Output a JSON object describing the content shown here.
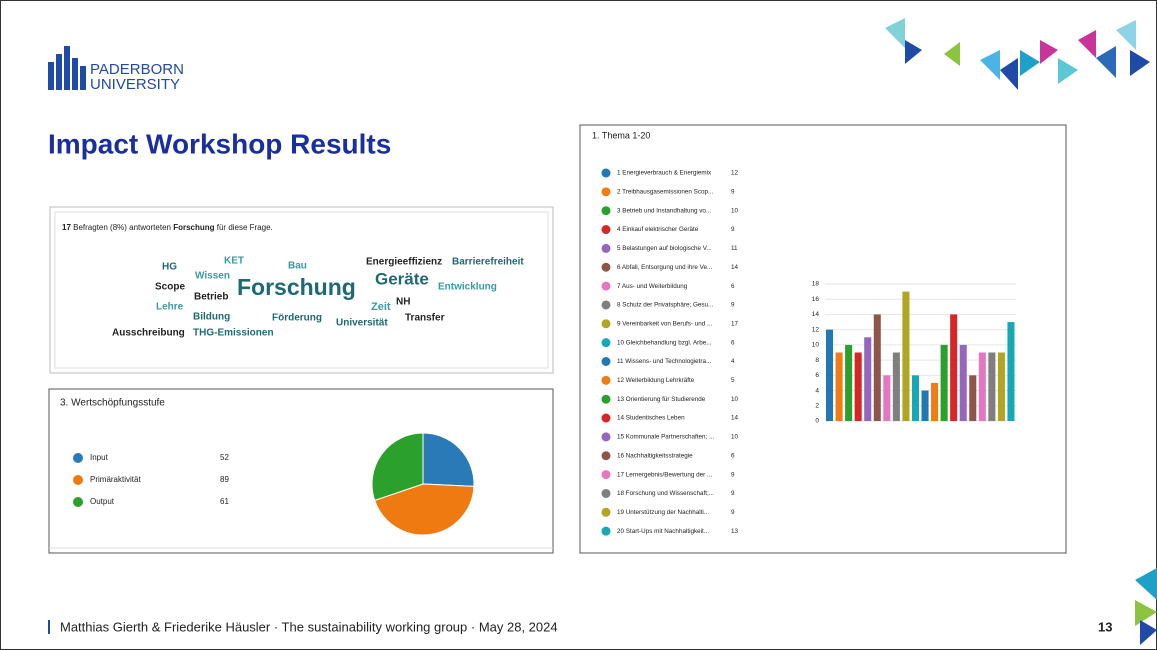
{
  "slide": {
    "logo": [
      "PADERBORN",
      "UNIVERSITY"
    ],
    "title": "Impact Workshop Results",
    "footer": "Matthias Gierth & Friederike Häusler · The sustainability working group · May 28, 2024",
    "page": "13"
  },
  "word_cloud": {
    "summary": [
      "17",
      " Befragten (8%) antworteten ",
      "Forschung",
      " für diese Frage."
    ],
    "words": [
      "KET",
      "Bau",
      "Energieeffizienz",
      "Barrierefreiheit",
      "HG",
      "Wissen",
      "Geräte",
      "Scope",
      "Forschung",
      "Entwicklung",
      "Betrieb",
      "Lehre",
      "Zeit",
      "NH",
      "Bildung",
      "Förderung",
      "Universität",
      "Transfer",
      "Ausschreibung",
      "THG-Emissionen"
    ]
  },
  "chart_data": [
    {
      "type": "pie",
      "title": "3. Wertschöpfungsstufe",
      "categories": [
        "Input",
        "Primäraktivität",
        "Output"
      ],
      "values": [
        52,
        89,
        61
      ],
      "colors": [
        "#2a7ab8",
        "#f07a12",
        "#2ca02c"
      ]
    },
    {
      "type": "bar",
      "title": "1. Thema 1-20",
      "categories": [
        "1 Energieverbrauch & Energiemix",
        "2 Treibhausgasemissionen Scop...",
        "3 Betrieb und Instandhaltung vo...",
        "4 Einkauf elektrischer Geräte",
        "5 Belastungen auf biologische V...",
        "6 Abfall, Entsorgung und ihre Ve...",
        "7 Aus- und Weiterbildung",
        "8 Schutz der Privatsphäre; Gesu...",
        "9 Vereinbarkeit von Berufs- und ...",
        "10 Gleichbehandlung bzgl. Arbe...",
        "11 Wissens- und Technologietra...",
        "12 Weiterbildung Lehrkräfte",
        "13 Orientierung für Studierende",
        "14 Studentisches Leben",
        "15 Kommunale Partnerschaften; ...",
        "16 Nachhaltigkeitsstrategie",
        "17 Lernergebnis/Bewertung der ...",
        "18 Forschung und Wissenschaft;...",
        "19 Unterstützung der Nachhalti...",
        "20 Start-Ups mit Nachhaltigkeit..."
      ],
      "values": [
        12,
        9,
        10,
        9,
        11,
        14,
        6,
        9,
        17,
        6,
        4,
        5,
        10,
        14,
        10,
        6,
        9,
        9,
        9,
        13
      ],
      "colors": [
        "#2277b5",
        "#f07c16",
        "#2ca02c",
        "#d62728",
        "#9467bd",
        "#8c564b",
        "#e377c2",
        "#7f7f7f",
        "#b0a622",
        "#17a8b8"
      ],
      "ylim": [
        0,
        18
      ],
      "yticks": [
        0,
        2,
        4,
        6,
        8,
        10,
        12,
        14,
        16,
        18
      ],
      "grid": true
    }
  ]
}
